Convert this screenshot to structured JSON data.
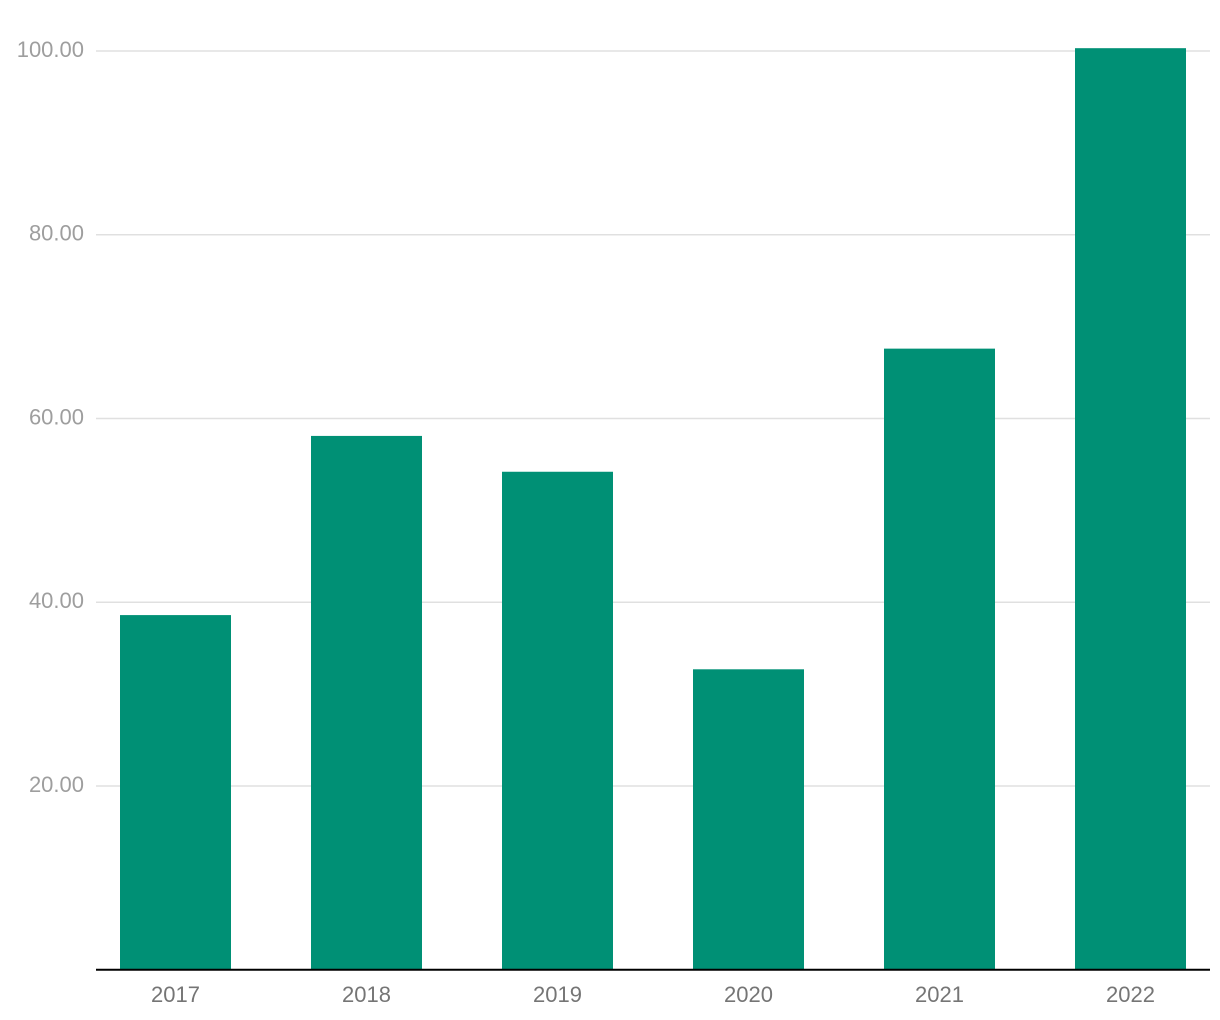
{
  "chart_data": {
    "type": "bar",
    "categories": [
      "2017",
      "2018",
      "2019",
      "2020",
      "2021",
      "2022"
    ],
    "values": [
      38.6,
      58.1,
      54.2,
      32.7,
      67.6,
      100.3
    ],
    "color": "#009075",
    "ylim": [
      0,
      105
    ],
    "yticks": [
      {
        "value": 20,
        "label": "20.00"
      },
      {
        "value": 40,
        "label": "40.00"
      },
      {
        "value": 60,
        "label": "60.00"
      },
      {
        "value": 80,
        "label": "80.00"
      },
      {
        "value": 100,
        "label": "100.00"
      }
    ],
    "grid": true
  }
}
